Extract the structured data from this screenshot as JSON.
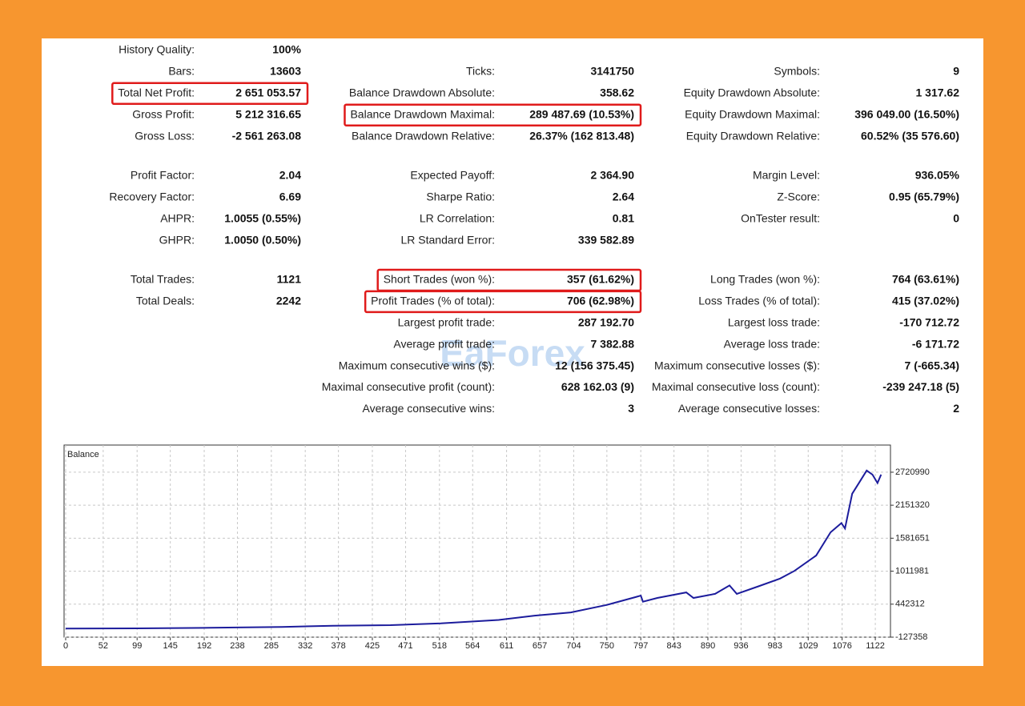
{
  "report": {
    "sections": [
      {
        "rows": [
          [
            {
              "label": "History Quality:",
              "value": "100%"
            },
            null,
            null
          ],
          [
            {
              "label": "Bars:",
              "value": "13603"
            },
            {
              "label": "Ticks:",
              "value": "3141750"
            },
            {
              "label": "Symbols:",
              "value": "9"
            }
          ],
          [
            {
              "label": "Total Net Profit:",
              "value": "2 651 053.57",
              "highlight": true
            },
            {
              "label": "Balance Drawdown Absolute:",
              "value": "358.62"
            },
            {
              "label": "Equity Drawdown Absolute:",
              "value": "1 317.62"
            }
          ],
          [
            {
              "label": "Gross Profit:",
              "value": "5 212 316.65"
            },
            {
              "label": "Balance Drawdown Maximal:",
              "value": "289 487.69 (10.53%)",
              "highlight": true
            },
            {
              "label": "Equity Drawdown Maximal:",
              "value": "396 049.00 (16.50%)"
            }
          ],
          [
            {
              "label": "Gross Loss:",
              "value": "-2 561 263.08"
            },
            {
              "label": "Balance Drawdown Relative:",
              "value": "26.37% (162 813.48)"
            },
            {
              "label": "Equity Drawdown Relative:",
              "value": "60.52% (35 576.60)"
            }
          ]
        ]
      },
      {
        "rows": [
          [
            {
              "label": "Profit Factor:",
              "value": "2.04"
            },
            {
              "label": "Expected Payoff:",
              "value": "2 364.90"
            },
            {
              "label": "Margin Level:",
              "value": "936.05%"
            }
          ],
          [
            {
              "label": "Recovery Factor:",
              "value": "6.69"
            },
            {
              "label": "Sharpe Ratio:",
              "value": "2.64"
            },
            {
              "label": "Z-Score:",
              "value": "0.95 (65.79%)"
            }
          ],
          [
            {
              "label": "AHPR:",
              "value": "1.0055 (0.55%)"
            },
            {
              "label": "LR Correlation:",
              "value": "0.81"
            },
            {
              "label": "OnTester result:",
              "value": "0"
            }
          ],
          [
            {
              "label": "GHPR:",
              "value": "1.0050 (0.50%)"
            },
            {
              "label": "LR Standard Error:",
              "value": "339 582.89"
            },
            null
          ]
        ]
      },
      {
        "rows": [
          [
            {
              "label": "Total Trades:",
              "value": "1121"
            },
            {
              "label": "Short Trades (won %):",
              "value": "357 (61.62%)",
              "highlight": true
            },
            {
              "label": "Long Trades (won %):",
              "value": "764 (63.61%)"
            }
          ],
          [
            {
              "label": "Total Deals:",
              "value": "2242"
            },
            {
              "label": "Profit Trades (% of total):",
              "value": "706 (62.98%)",
              "highlight": true
            },
            {
              "label": "Loss Trades (% of total):",
              "value": "415 (37.02%)"
            }
          ],
          [
            null,
            {
              "label": "Largest profit trade:",
              "value": "287 192.70"
            },
            {
              "label": "Largest loss trade:",
              "value": "-170 712.72"
            }
          ],
          [
            null,
            {
              "label": "Average profit trade:",
              "value": "7 382.88"
            },
            {
              "label": "Average loss trade:",
              "value": "-6 171.72"
            }
          ],
          [
            null,
            {
              "label": "Maximum consecutive wins ($):",
              "value": "12 (156 375.45)"
            },
            {
              "label": "Maximum consecutive losses ($):",
              "value": "7 (-665.34)"
            }
          ],
          [
            null,
            {
              "label": "Maximal consecutive profit (count):",
              "value": "628 162.03 (9)"
            },
            {
              "label": "Maximal consecutive loss (count):",
              "value": "-239 247.18 (5)"
            }
          ],
          [
            null,
            {
              "label": "Average consecutive wins:",
              "value": "3"
            },
            {
              "label": "Average consecutive losses:",
              "value": "2"
            }
          ]
        ]
      }
    ],
    "watermark": "EaForex"
  },
  "chart_data": {
    "type": "line",
    "title": "Balance",
    "color": "#1c1c9c",
    "grid": true,
    "x": [
      0,
      100,
      200,
      300,
      370,
      450,
      520,
      600,
      650,
      700,
      750,
      790,
      797,
      800,
      820,
      860,
      870,
      900,
      920,
      930,
      960,
      990,
      1010,
      1040,
      1060,
      1075,
      1080,
      1090,
      1100,
      1110,
      1118,
      1125,
      1130
    ],
    "values": [
      20000,
      25000,
      35000,
      50000,
      70000,
      80000,
      110000,
      170000,
      245000,
      300000,
      430000,
      565000,
      590000,
      485000,
      550000,
      645000,
      550000,
      620000,
      765000,
      620000,
      750000,
      885000,
      1017000,
      1283000,
      1683000,
      1843000,
      1750000,
      2350000,
      2550000,
      2750000,
      2680000,
      2535000,
      2680000
    ],
    "xlim": [
      0,
      1143
    ],
    "xticks": [
      0,
      52,
      99,
      145,
      192,
      238,
      285,
      332,
      378,
      425,
      471,
      518,
      564,
      611,
      657,
      704,
      750,
      797,
      843,
      890,
      936,
      983,
      1029,
      1076,
      1122
    ],
    "ylim": [
      -127358,
      3190000
    ],
    "yticks": [
      -127358,
      442312,
      1011981,
      1581651,
      2151320,
      2720990
    ]
  }
}
